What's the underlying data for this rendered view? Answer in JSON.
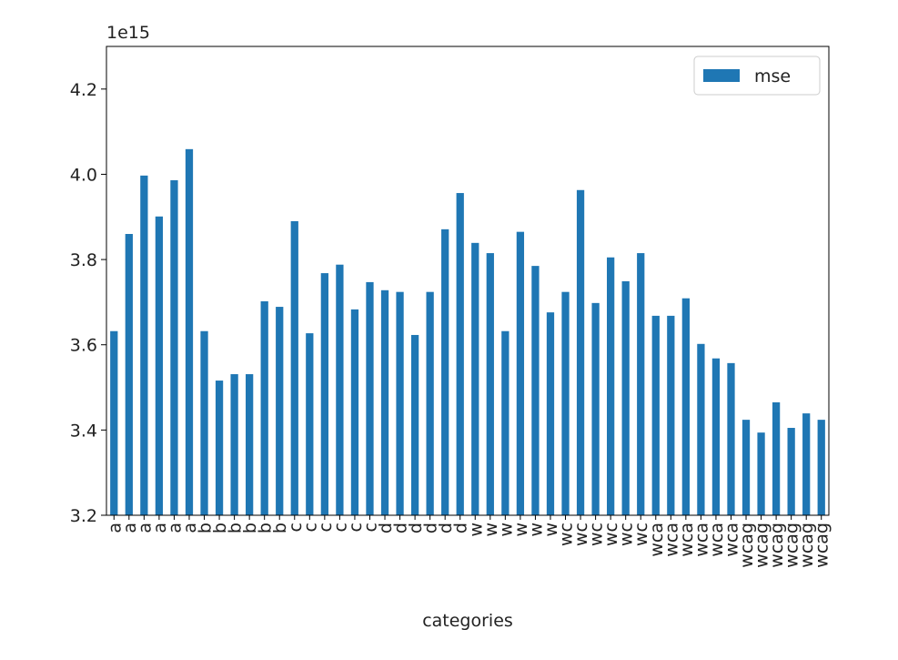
{
  "chart_data": {
    "type": "bar",
    "offset_label": "1e15",
    "x_label": "categories",
    "categories": [
      "a",
      "a",
      "a",
      "a",
      "a",
      "a",
      "b",
      "b",
      "b",
      "b",
      "b",
      "b",
      "c",
      "c",
      "c",
      "c",
      "c",
      "c",
      "d",
      "d",
      "d",
      "d",
      "d",
      "d",
      "w",
      "w",
      "w",
      "w",
      "w",
      "w",
      "wc",
      "wc",
      "wc",
      "wc",
      "wc",
      "wc",
      "wca",
      "wca",
      "wca",
      "wca",
      "wca",
      "wca",
      "wcag",
      "wcag",
      "wcag",
      "wcag",
      "wcag",
      "wcag"
    ],
    "series": [
      {
        "name": "mse",
        "color": "#1f77b4",
        "values": [
          3.632,
          3.86,
          3.997,
          3.901,
          3.986,
          4.059,
          3.632,
          3.516,
          3.531,
          3.531,
          3.702,
          3.689,
          3.89,
          3.627,
          3.768,
          3.788,
          3.683,
          3.747,
          3.728,
          3.724,
          3.623,
          3.724,
          3.871,
          3.956,
          3.839,
          3.815,
          3.632,
          3.865,
          3.785,
          3.676,
          3.724,
          3.963,
          3.698,
          3.805,
          3.749,
          3.815,
          3.668,
          3.668,
          3.709,
          3.602,
          3.568,
          3.557,
          3.424,
          3.394,
          3.465,
          3.405,
          3.439,
          3.424
        ]
      }
    ],
    "ylim": [
      3.2,
      4.3
    ],
    "yticks": [
      3.2,
      3.4,
      3.6,
      3.8,
      {
        "value": 4,
        "label": "4.0"
      },
      4.2
    ],
    "legend": "upper right"
  }
}
